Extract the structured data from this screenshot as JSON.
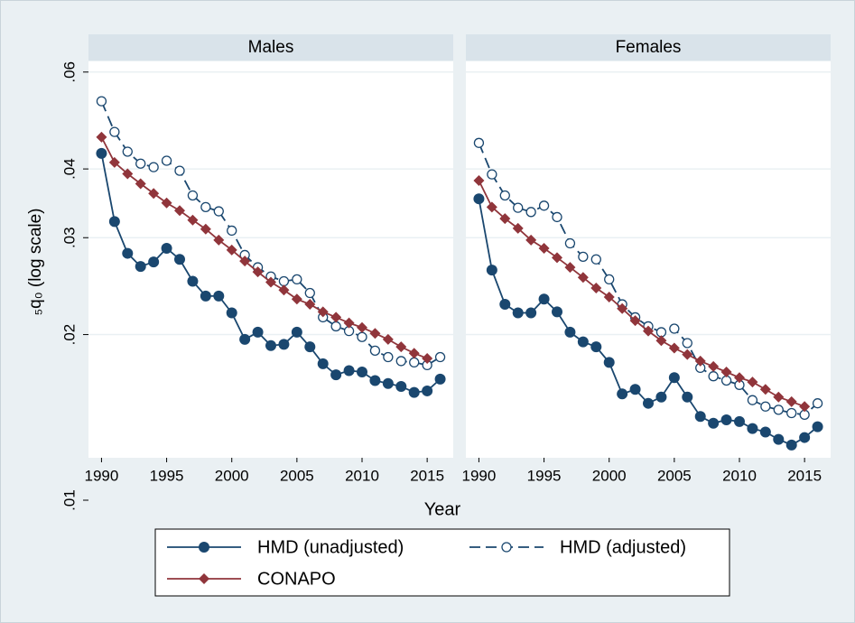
{
  "chart_data": {
    "type": "line",
    "x_label": "Year",
    "y_label": "₅q₀ (log scale)",
    "log_y": true,
    "grid": true,
    "ylim": [
      0.01,
      0.0625
    ],
    "yticks": [
      {
        "value": 0.06,
        "label": ".06"
      },
      {
        "value": 0.04,
        "label": ".04"
      },
      {
        "value": 0.03,
        "label": ".03"
      },
      {
        "value": 0.02,
        "label": ".02"
      },
      {
        "value": 0.01,
        "label": ".01"
      }
    ],
    "xlim": [
      1989,
      2017
    ],
    "xticks": [
      1990,
      1995,
      2000,
      2005,
      2010,
      2015
    ],
    "panels": [
      {
        "title": "Males",
        "x": [
          1990,
          1991,
          1992,
          1993,
          1994,
          1995,
          1996,
          1997,
          1998,
          1999,
          2000,
          2001,
          2002,
          2003,
          2004,
          2005,
          2006,
          2007,
          2008,
          2009,
          2010,
          2011,
          2012,
          2013,
          2014,
          2015,
          2016
        ],
        "series": [
          {
            "name": "HMD (unadjusted)",
            "color": "#1a476f",
            "marker": "filled-circle",
            "dash": "solid",
            "values": [
              0.0427,
              0.0321,
              0.0281,
              0.0266,
              0.0271,
              0.0287,
              0.0274,
              0.025,
              0.0235,
              0.0235,
              0.0219,
              0.0196,
              0.0202,
              0.0191,
              0.0192,
              0.0202,
              0.019,
              0.0177,
              0.0169,
              0.0172,
              0.0171,
              0.0165,
              0.0163,
              0.0161,
              0.0157,
              0.0158,
              0.0166
            ]
          },
          {
            "name": "HMD (adjusted)",
            "color": "#1a476f",
            "marker": "open-circle",
            "dash": "dashed",
            "values": [
              0.0531,
              0.0467,
              0.043,
              0.0409,
              0.0403,
              0.0414,
              0.0397,
              0.0358,
              0.0341,
              0.0335,
              0.0309,
              0.0279,
              0.0265,
              0.0255,
              0.025,
              0.0252,
              0.0238,
              0.0215,
              0.0207,
              0.0203,
              0.0198,
              0.0187,
              0.0182,
              0.0179,
              0.0178,
              0.0176,
              0.0182
            ]
          },
          {
            "name": "CONAPO",
            "color": "#90353b",
            "marker": "diamond",
            "dash": "solid",
            "values": [
              0.0457,
              0.0411,
              0.0392,
              0.0376,
              0.0361,
              0.0347,
              0.0336,
              0.0323,
              0.0311,
              0.0297,
              0.0285,
              0.0272,
              0.026,
              0.0249,
              0.0241,
              0.0232,
              0.0227,
              0.022,
              0.0215,
              0.021,
              0.0206,
              0.0201,
              0.0196,
              0.019,
              0.0185,
              0.0181,
              null
            ]
          }
        ]
      },
      {
        "title": "Females",
        "x": [
          1990,
          1991,
          1992,
          1993,
          1994,
          1995,
          1996,
          1997,
          1998,
          1999,
          2000,
          2001,
          2002,
          2003,
          2004,
          2005,
          2006,
          2007,
          2008,
          2009,
          2010,
          2011,
          2012,
          2013,
          2014,
          2015,
          2016
        ],
        "series": [
          {
            "name": "HMD (unadjusted)",
            "color": "#1a476f",
            "marker": "filled-circle",
            "dash": "solid",
            "values": [
              0.0353,
              0.0262,
              0.0227,
              0.0219,
              0.0219,
              0.0232,
              0.022,
              0.0202,
              0.0194,
              0.019,
              0.0178,
              0.0156,
              0.0159,
              0.015,
              0.0154,
              0.0167,
              0.0154,
              0.0142,
              0.0138,
              0.014,
              0.0139,
              0.0135,
              0.0133,
              0.0129,
              0.0126,
              0.013,
              0.0136
            ]
          },
          {
            "name": "HMD (adjusted)",
            "color": "#1a476f",
            "marker": "open-circle",
            "dash": "dashed",
            "values": [
              0.0446,
              0.0391,
              0.0358,
              0.034,
              0.0334,
              0.0343,
              0.0327,
              0.0293,
              0.0277,
              0.0274,
              0.0252,
              0.0227,
              0.0215,
              0.0207,
              0.0202,
              0.0205,
              0.0193,
              0.0174,
              0.0168,
              0.0165,
              0.0162,
              0.0152,
              0.0148,
              0.0146,
              0.0144,
              0.0143,
              0.015
            ]
          },
          {
            "name": "CONAPO",
            "color": "#90353b",
            "marker": "diamond",
            "dash": "solid",
            "values": [
              0.0381,
              0.0341,
              0.0325,
              0.0312,
              0.0297,
              0.0287,
              0.0276,
              0.0265,
              0.0254,
              0.0243,
              0.0234,
              0.0223,
              0.0212,
              0.0203,
              0.0195,
              0.0189,
              0.0184,
              0.0179,
              0.0175,
              0.0171,
              0.0167,
              0.0164,
              0.0159,
              0.0154,
              0.0151,
              0.0148,
              null
            ]
          }
        ]
      }
    ]
  }
}
